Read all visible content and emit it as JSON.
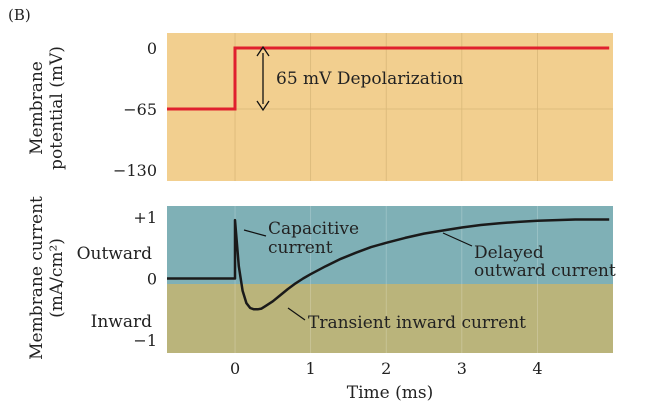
{
  "panel_label": "(B)",
  "colors": {
    "voltage_bg": "#f2cf8f",
    "outward_bg": "#7fb0b6",
    "inward_bg": "#bab47b",
    "voltage_trace": "#e0202e",
    "current_trace": "#1a1a1a",
    "grid": "#d9b879"
  },
  "chart_data": [
    {
      "type": "line",
      "name": "voltage-panel",
      "ylabel_lines": [
        "Membrane",
        "potential (mV)"
      ],
      "yticks": [
        0,
        -65,
        -130
      ],
      "ytick_labels": [
        "0",
        "−65",
        "−130"
      ],
      "xlim": [
        -0.9,
        5.0
      ],
      "ylim": [
        -130,
        0
      ],
      "grid": true,
      "series": [
        {
          "x": [
            -0.9,
            0.0,
            0.0,
            4.95
          ],
          "y": [
            -65,
            -65,
            0,
            0
          ]
        }
      ],
      "annotation": {
        "text": "65 mV Depolarization",
        "arrow_x": 0.38,
        "from": -65,
        "to": 0
      }
    },
    {
      "type": "line",
      "name": "current-panel",
      "ylabel_lines": [
        "Membrane current",
        "(mA/cm²)"
      ],
      "yticks": [
        1,
        0,
        -1
      ],
      "ytick_labels": [
        "+1",
        "0",
        "−1"
      ],
      "region_labels": [
        "Outward",
        "Inward"
      ],
      "xlabel": "Time (ms)",
      "xticks": [
        0,
        1,
        2,
        3,
        4
      ],
      "xtick_labels": [
        "0",
        "1",
        "2",
        "3",
        "4"
      ],
      "xlim": [
        -0.9,
        5.0
      ],
      "ylim": [
        -1,
        1
      ],
      "grid": true,
      "series": [
        {
          "x": [
            -0.9,
            0.0,
            0.0,
            0.05,
            0.1,
            0.15,
            0.2,
            0.25,
            0.3,
            0.35,
            0.4,
            0.5,
            0.6,
            0.7,
            0.8,
            0.9,
            1.0,
            1.2,
            1.4,
            1.6,
            1.8,
            2.0,
            2.25,
            2.5,
            2.75,
            3.0,
            3.25,
            3.5,
            3.75,
            4.0,
            4.25,
            4.5,
            4.75,
            4.95
          ],
          "y": [
            0.0,
            0.0,
            0.95,
            0.2,
            -0.2,
            -0.4,
            -0.48,
            -0.5,
            -0.5,
            -0.49,
            -0.45,
            -0.37,
            -0.27,
            -0.17,
            -0.08,
            0.0,
            0.07,
            0.2,
            0.32,
            0.42,
            0.51,
            0.58,
            0.66,
            0.73,
            0.78,
            0.83,
            0.87,
            0.9,
            0.92,
            0.94,
            0.95,
            0.96,
            0.96,
            0.96
          ]
        }
      ],
      "annotations": [
        {
          "lines": [
            "Capacitive",
            "current"
          ]
        },
        {
          "lines": [
            "Delayed",
            "outward current"
          ]
        },
        {
          "lines": [
            "Transient inward current"
          ]
        }
      ]
    }
  ]
}
